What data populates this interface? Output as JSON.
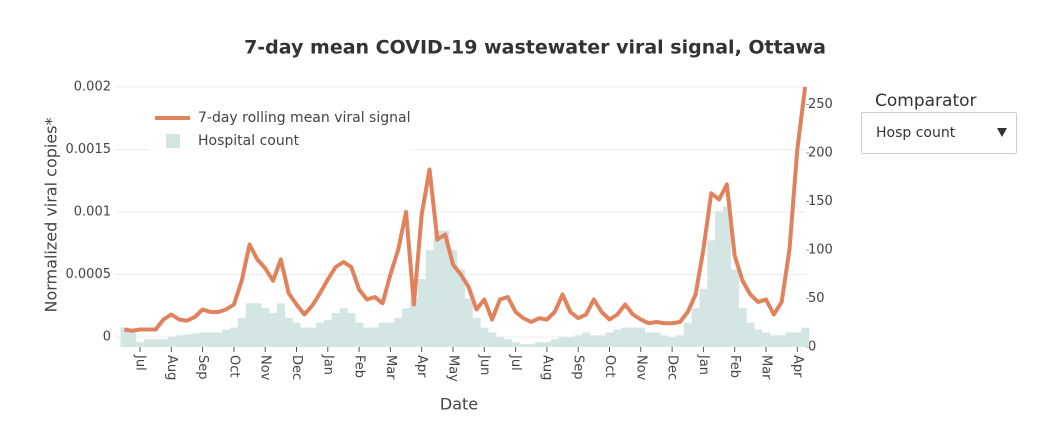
{
  "chart_data": {
    "type": "line",
    "title": "7-day mean COVID-19 wastewater viral signal, Ottawa",
    "x_label": "Date",
    "y_label": "Normalized viral copies*",
    "categories": [
      null,
      null,
      "Jul",
      null,
      null,
      null,
      "Aug",
      null,
      null,
      null,
      "Sep",
      null,
      null,
      null,
      "Oct",
      null,
      null,
      null,
      "Nov",
      null,
      null,
      null,
      "Dec",
      null,
      null,
      null,
      "Jan",
      null,
      null,
      null,
      "Feb",
      null,
      null,
      null,
      "Mar",
      null,
      null,
      null,
      "Apr",
      null,
      null,
      null,
      "May",
      null,
      null,
      null,
      "Jun",
      null,
      null,
      null,
      "Jul",
      null,
      null,
      null,
      "Aug",
      null,
      null,
      null,
      "Sep",
      null,
      null,
      null,
      "Oct",
      null,
      null,
      null,
      "Nov",
      null,
      null,
      null,
      "Dec",
      null,
      null,
      null,
      "Jan",
      null,
      null,
      null,
      "Feb",
      null,
      null,
      null,
      "Mar",
      null,
      null,
      null,
      "Apr",
      null
    ],
    "series": [
      {
        "name": "Hospital count",
        "type": "bar",
        "axis": "y2",
        "color": "#d3e6e3",
        "values": [
          20,
          15,
          5,
          8,
          8,
          8,
          10,
          12,
          13,
          14,
          15,
          15,
          15,
          18,
          20,
          30,
          45,
          45,
          40,
          35,
          45,
          30,
          25,
          20,
          20,
          25,
          28,
          35,
          40,
          35,
          25,
          20,
          20,
          25,
          25,
          30,
          40,
          50,
          70,
          100,
          120,
          120,
          100,
          80,
          50,
          30,
          20,
          15,
          10,
          8,
          5,
          3,
          3,
          5,
          5,
          8,
          10,
          10,
          12,
          15,
          12,
          12,
          15,
          18,
          20,
          20,
          20,
          15,
          15,
          12,
          10,
          12,
          25,
          40,
          60,
          110,
          140,
          145,
          80,
          40,
          25,
          18,
          15,
          12,
          12,
          15,
          15,
          20
        ]
      },
      {
        "name": "7-day rolling mean viral signal",
        "type": "line",
        "axis": "y",
        "color": "#e0825c",
        "values": [
          6e-05,
          5e-05,
          6e-05,
          6e-05,
          6e-05,
          0.00014,
          0.00018,
          0.00014,
          0.00013,
          0.00016,
          0.00022,
          0.0002,
          0.0002,
          0.00022,
          0.00026,
          0.00045,
          0.00074,
          0.00062,
          0.00055,
          0.00045,
          0.00062,
          0.00035,
          0.00026,
          0.00018,
          0.00025,
          0.00035,
          0.00046,
          0.00056,
          0.0006,
          0.00056,
          0.00038,
          0.0003,
          0.00032,
          0.00027,
          0.0005,
          0.0007,
          0.001,
          0.00026,
          0.00098,
          0.00134,
          0.00078,
          0.00082,
          0.00058,
          0.0005,
          0.0004,
          0.00022,
          0.0003,
          0.00014,
          0.0003,
          0.00032,
          0.0002,
          0.00015,
          0.00012,
          0.00015,
          0.00014,
          0.0002,
          0.00034,
          0.0002,
          0.00015,
          0.00018,
          0.0003,
          0.0002,
          0.00014,
          0.00018,
          0.00026,
          0.00018,
          0.00014,
          0.00011,
          0.00012,
          0.00011,
          0.00011,
          0.00012,
          0.0002,
          0.00034,
          0.0007,
          0.00115,
          0.0011,
          0.00122,
          0.00065,
          0.00045,
          0.00034,
          0.00028,
          0.0003,
          0.00018,
          0.00028,
          0.0007,
          0.0015,
          0.002
        ]
      }
    ],
    "ylim": [
      -8e-05,
      0.002
    ],
    "yticks": [
      0,
      0.0005,
      0.001,
      0.0015,
      0.002
    ],
    "y2lim": [
      0,
      268
    ],
    "y2ticks": [
      0,
      50,
      100,
      150,
      200,
      250
    ],
    "grid": true
  },
  "controls": {
    "comparator": {
      "label": "Comparator",
      "selected": "Hosp count"
    }
  }
}
